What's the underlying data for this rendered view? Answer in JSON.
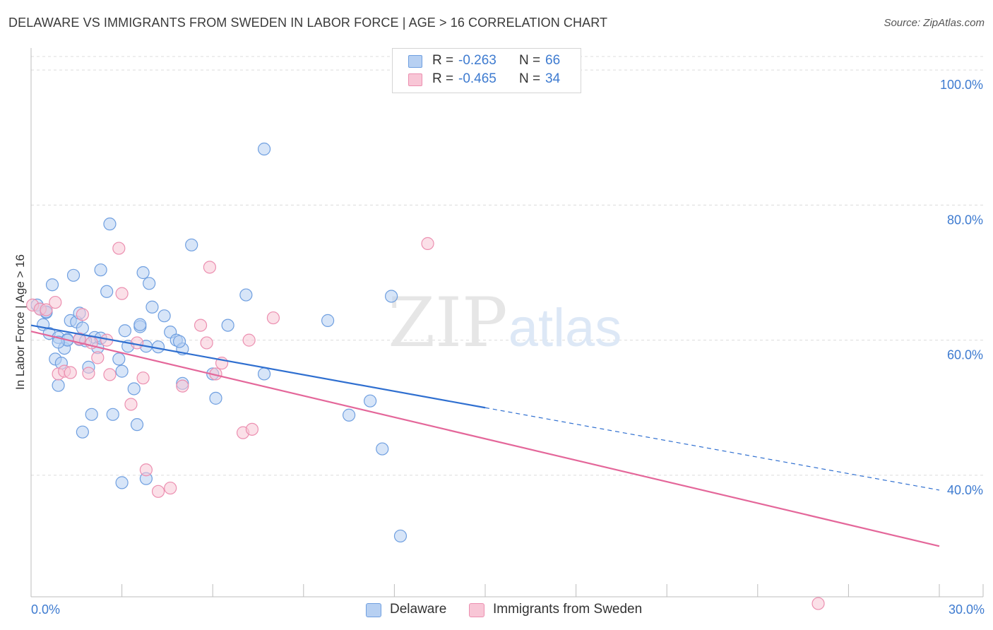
{
  "title": "DELAWARE VS IMMIGRANTS FROM SWEDEN IN LABOR FORCE | AGE > 16 CORRELATION CHART",
  "source": "Source: ZipAtlas.com",
  "watermark": {
    "zip": "ZIP",
    "atlas": "atlas"
  },
  "legend": {
    "r_label": "R =",
    "n_label": "N =",
    "series": [
      {
        "name": "Delaware",
        "r": "-0.263",
        "n": "66",
        "fill": "#b7d0f2",
        "stroke": "#6f9fe0"
      },
      {
        "name": "Immigrants from Sweden",
        "r": "-0.465",
        "n": "34",
        "fill": "#f8c6d6",
        "stroke": "#ec8fb0"
      }
    ]
  },
  "chart_data": {
    "type": "scatter",
    "title": "DELAWARE VS IMMIGRANTS FROM SWEDEN IN LABOR FORCE | AGE > 16 CORRELATION CHART",
    "xlabel": "",
    "ylabel": "In Labor Force | Age > 16",
    "xlim": [
      0,
      30
    ],
    "ylim": [
      22,
      102
    ],
    "x_tick_labels": [
      "0.0%",
      "30.0%"
    ],
    "y_ticks": [
      40,
      60,
      80,
      100
    ],
    "y_tick_labels": [
      "40.0%",
      "60.0%",
      "80.0%",
      "100.0%"
    ],
    "grid": true,
    "series": [
      {
        "name": "Delaware",
        "color": "#6f9fe0",
        "fill": "#b7d0f2",
        "trendline": {
          "x": [
            0,
            15
          ],
          "y": [
            62.2,
            50.0
          ],
          "color": "#2f6fd0",
          "dashed_extension_to": [
            30,
            37.8
          ]
        },
        "points": [
          [
            0.2,
            65.2
          ],
          [
            0.3,
            64.6
          ],
          [
            0.4,
            62.3
          ],
          [
            0.5,
            64.1
          ],
          [
            0.6,
            61.0
          ],
          [
            0.7,
            68.2
          ],
          [
            0.8,
            57.2
          ],
          [
            0.9,
            60.4
          ],
          [
            1.0,
            56.6
          ],
          [
            1.1,
            58.8
          ],
          [
            1.2,
            60.1
          ],
          [
            1.3,
            62.9
          ],
          [
            1.4,
            69.6
          ],
          [
            1.5,
            62.7
          ],
          [
            1.6,
            60.1
          ],
          [
            1.7,
            61.8
          ],
          [
            1.9,
            56.0
          ],
          [
            1.6,
            64.0
          ],
          [
            2.1,
            60.4
          ],
          [
            2.2,
            58.9
          ],
          [
            2.3,
            70.4
          ],
          [
            2.5,
            67.2
          ],
          [
            2.6,
            77.2
          ],
          [
            2.7,
            49.0
          ],
          [
            2.9,
            57.2
          ],
          [
            3.0,
            55.4
          ],
          [
            3.2,
            59.1
          ],
          [
            3.1,
            61.4
          ],
          [
            3.4,
            52.8
          ],
          [
            3.6,
            62.0
          ],
          [
            3.7,
            70.0
          ],
          [
            3.8,
            59.1
          ],
          [
            3.9,
            68.4
          ],
          [
            4.0,
            64.9
          ],
          [
            4.2,
            59.0
          ],
          [
            4.4,
            63.6
          ],
          [
            4.6,
            61.2
          ],
          [
            4.8,
            60.0
          ],
          [
            5.0,
            58.7
          ],
          [
            5.0,
            53.6
          ],
          [
            5.3,
            74.1
          ],
          [
            6.0,
            55.0
          ],
          [
            6.1,
            51.4
          ],
          [
            6.5,
            62.2
          ],
          [
            7.1,
            66.7
          ],
          [
            3.0,
            38.9
          ],
          [
            3.5,
            47.5
          ],
          [
            3.8,
            39.5
          ],
          [
            7.7,
            88.3
          ],
          [
            7.7,
            55.0
          ],
          [
            9.8,
            62.9
          ],
          [
            10.5,
            48.9
          ],
          [
            11.2,
            51.0
          ],
          [
            11.6,
            43.9
          ],
          [
            11.9,
            66.5
          ],
          [
            12.2,
            31.0
          ],
          [
            1.7,
            46.4
          ],
          [
            2.0,
            49.0
          ],
          [
            0.9,
            53.3
          ],
          [
            1.2,
            60.0
          ],
          [
            0.5,
            64.2
          ],
          [
            2.3,
            60.3
          ],
          [
            3.6,
            62.3
          ],
          [
            4.9,
            59.8
          ],
          [
            1.8,
            59.9
          ],
          [
            0.9,
            59.7
          ]
        ]
      },
      {
        "name": "Immigrants from Sweden",
        "color": "#ec8fb0",
        "fill": "#f8c6d6",
        "trendline": {
          "x": [
            0,
            30
          ],
          "y": [
            61.3,
            29.5
          ],
          "color": "#e4679a"
        },
        "points": [
          [
            0.05,
            65.2
          ],
          [
            0.3,
            64.6
          ],
          [
            0.5,
            64.5
          ],
          [
            0.8,
            65.6
          ],
          [
            0.9,
            55.0
          ],
          [
            1.1,
            55.4
          ],
          [
            1.3,
            55.2
          ],
          [
            1.6,
            60.2
          ],
          [
            1.9,
            55.1
          ],
          [
            1.7,
            63.8
          ],
          [
            2.0,
            59.6
          ],
          [
            2.2,
            57.4
          ],
          [
            2.5,
            60.0
          ],
          [
            2.9,
            73.6
          ],
          [
            3.0,
            66.9
          ],
          [
            3.3,
            50.5
          ],
          [
            3.5,
            59.6
          ],
          [
            3.7,
            54.4
          ],
          [
            3.8,
            40.8
          ],
          [
            4.2,
            37.6
          ],
          [
            4.6,
            38.1
          ],
          [
            5.0,
            53.2
          ],
          [
            5.6,
            62.2
          ],
          [
            5.8,
            59.6
          ],
          [
            5.9,
            70.8
          ],
          [
            6.1,
            55.0
          ],
          [
            6.3,
            56.6
          ],
          [
            7.0,
            46.3
          ],
          [
            7.3,
            46.8
          ],
          [
            7.2,
            60.0
          ],
          [
            8.0,
            63.3
          ],
          [
            13.1,
            74.3
          ],
          [
            26.0,
            21.0
          ],
          [
            2.6,
            54.9
          ]
        ]
      }
    ]
  }
}
